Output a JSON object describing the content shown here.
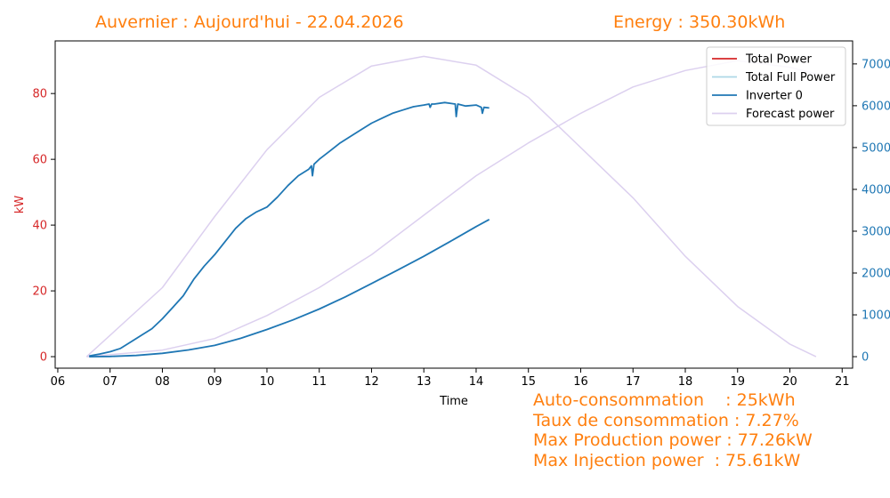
{
  "header": {
    "title_left": "Auvernier : Aujourd'hui - 22.04.2026",
    "title_right": "Energy : 350.30kWh"
  },
  "stats": [
    "Auto-consommation    : 25kWh",
    "Taux de consommation : 7.27%",
    "Max Production power : 77.26kW",
    "Max Injection power  : 75.61kW"
  ],
  "colors": {
    "total_power": "#d62728",
    "total_full_power": "#add8e6",
    "inverter": "#1f77b4",
    "forecast": "#dcd0ef",
    "left_axis": "#d62728",
    "right_axis": "#1f77b4",
    "text_accent": "#ff7f0e"
  },
  "chart_data": {
    "type": "line",
    "xlabel": "Time",
    "ylabel": "kW",
    "xlim": [
      5.95,
      21.2
    ],
    "ylim": [
      -3.5,
      96
    ],
    "y2lim": [
      -275,
      7550
    ],
    "x_ticks": [
      "06",
      "07",
      "08",
      "09",
      "10",
      "11",
      "12",
      "13",
      "14",
      "15",
      "16",
      "17",
      "18",
      "19",
      "20",
      "21"
    ],
    "x_tick_values": [
      6,
      7,
      8,
      9,
      10,
      11,
      12,
      13,
      14,
      15,
      16,
      17,
      18,
      19,
      20,
      21
    ],
    "y_ticks": [
      0,
      20,
      40,
      60,
      80
    ],
    "y2_ticks": [
      0,
      1000,
      2000,
      3000,
      4000,
      5000,
      6000,
      7000
    ],
    "legend_position": "top-right",
    "grid": false,
    "series": [
      {
        "name": "Total Power",
        "axis": "left",
        "x": [],
        "values": []
      },
      {
        "name": "Total Full Power",
        "axis": "left",
        "x": [],
        "values": []
      },
      {
        "name": "Inverter 0",
        "axis": "left",
        "x": [
          6.6,
          6.8,
          7.0,
          7.2,
          7.4,
          7.6,
          7.8,
          8.0,
          8.2,
          8.4,
          8.6,
          8.8,
          9.0,
          9.2,
          9.4,
          9.6,
          9.8,
          10.0,
          10.2,
          10.4,
          10.6,
          10.8,
          10.85,
          10.87,
          10.9,
          11.0,
          11.2,
          11.4,
          11.6,
          11.8,
          12.0,
          12.2,
          12.4,
          12.6,
          12.8,
          13.0,
          13.1,
          13.12,
          13.15,
          13.2,
          13.4,
          13.6,
          13.62,
          13.65,
          13.8,
          14.0,
          14.1,
          14.12,
          14.15,
          14.25
        ],
        "values": [
          0.2,
          0.8,
          1.5,
          2.5,
          4.5,
          6.5,
          8.5,
          11.5,
          15,
          18.5,
          23.5,
          27.5,
          31,
          35,
          39,
          42,
          44,
          45.5,
          48.5,
          52,
          55,
          57,
          58,
          55,
          58.5,
          60,
          62.5,
          65,
          67,
          69,
          71,
          72.5,
          74,
          75,
          76,
          76.5,
          76.8,
          75.8,
          76.8,
          76.8,
          77.26,
          76.8,
          73,
          76.8,
          76.2,
          76.5,
          75.8,
          74,
          75.8,
          75.6
        ]
      },
      {
        "name": "Forecast power",
        "axis": "right",
        "x": [
          6.55,
          8.0,
          9.0,
          10.0,
          11.0,
          12.0,
          13.0,
          14.0,
          15.0,
          16.0,
          17.0,
          18.0,
          19.0,
          20.0,
          20.5
        ],
        "values": [
          0,
          1650,
          3350,
          4950,
          6200,
          6950,
          7180,
          6970,
          6200,
          5000,
          3800,
          2400,
          1200,
          300,
          0
        ]
      },
      {
        "name": "",
        "axis": "left",
        "x": [
          6.55,
          8.0,
          9.0,
          10.0,
          11.0,
          12.0,
          13.0,
          14.0,
          15.0,
          16.0,
          17.0,
          18.0,
          19.0,
          20.0,
          20.5
        ],
        "values": [
          0,
          2,
          5.5,
          12.5,
          21,
          31,
          43,
          55,
          65,
          74,
          82,
          87,
          90,
          88,
          86
        ]
      },
      {
        "name": "",
        "axis": "right",
        "x": [
          6.6,
          7.0,
          7.5,
          8.0,
          8.5,
          9.0,
          9.5,
          10.0,
          10.5,
          11.0,
          11.5,
          12.0,
          12.5,
          13.0,
          13.5,
          14.0,
          14.25
        ],
        "values": [
          0,
          5,
          30,
          80,
          160,
          270,
          440,
          650,
          880,
          1140,
          1430,
          1750,
          2070,
          2400,
          2750,
          3110,
          3280
        ]
      }
    ]
  }
}
